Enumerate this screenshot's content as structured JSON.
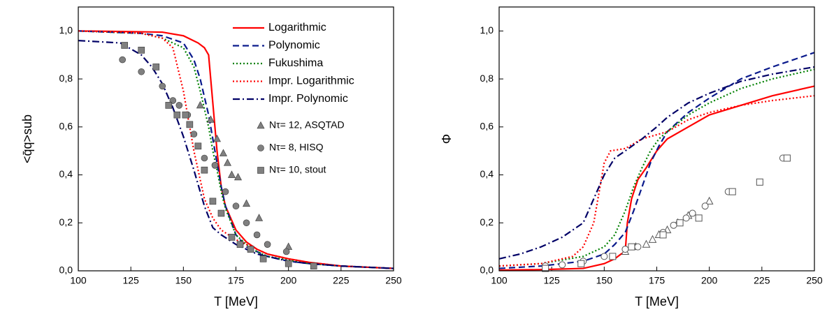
{
  "chart_data": [
    {
      "type": "line",
      "xlabel": "T [MeV]",
      "ylabel": "<q̄q>sub",
      "xlim": [
        100,
        250
      ],
      "xticks": [
        100,
        125,
        150,
        175,
        200,
        225,
        250
      ],
      "ylim": [
        0,
        1.1
      ],
      "yticks": [
        {
          "value": 0,
          "label": "0,0"
        },
        {
          "value": 0.2,
          "label": "0,2"
        },
        {
          "value": 0.4,
          "label": "0,4"
        },
        {
          "value": 0.6,
          "label": "0,6"
        },
        {
          "value": 0.8,
          "label": "0,8"
        },
        {
          "value": 1.0,
          "label": "1,0"
        }
      ],
      "legend": "upper right",
      "series": [
        {
          "name": "Logarithmic",
          "color": "#ff0000",
          "dash": "solid",
          "x": [
            100,
            120,
            140,
            150,
            157,
            160,
            162,
            164,
            166,
            168,
            170,
            175,
            180,
            185,
            190,
            200,
            210,
            225,
            250
          ],
          "values": [
            1.0,
            0.998,
            0.995,
            0.98,
            0.95,
            0.93,
            0.9,
            0.7,
            0.5,
            0.35,
            0.27,
            0.17,
            0.12,
            0.09,
            0.07,
            0.05,
            0.035,
            0.02,
            0.01
          ]
        },
        {
          "name": "Polynomic",
          "color": "#0a1a8c",
          "dash": "dashed",
          "x": [
            100,
            130,
            140,
            150,
            155,
            158,
            162,
            164,
            166,
            168,
            170,
            175,
            180,
            185,
            190,
            200,
            210,
            225,
            250
          ],
          "values": [
            1.0,
            0.99,
            0.98,
            0.95,
            0.88,
            0.8,
            0.65,
            0.55,
            0.45,
            0.35,
            0.27,
            0.15,
            0.1,
            0.08,
            0.06,
            0.04,
            0.03,
            0.02,
            0.01
          ]
        },
        {
          "name": "Fukushima",
          "color": "#008000",
          "dash": "dotted",
          "x": [
            100,
            130,
            140,
            150,
            155,
            158,
            162,
            164,
            166,
            168,
            170,
            175,
            180,
            185,
            190,
            200,
            210,
            225,
            250
          ],
          "values": [
            1.0,
            0.99,
            0.97,
            0.93,
            0.85,
            0.75,
            0.6,
            0.5,
            0.42,
            0.33,
            0.26,
            0.15,
            0.11,
            0.08,
            0.06,
            0.045,
            0.03,
            0.02,
            0.01
          ]
        },
        {
          "name": "Impr. Logarithmic",
          "color": "#ff0000",
          "dash": "dotted",
          "x": [
            100,
            120,
            130,
            135,
            140,
            145,
            150,
            155,
            160,
            164,
            168,
            175,
            180,
            185,
            190,
            200,
            210,
            225,
            250
          ],
          "values": [
            1.0,
            0.995,
            0.99,
            0.98,
            0.97,
            0.93,
            0.75,
            0.5,
            0.3,
            0.22,
            0.17,
            0.13,
            0.11,
            0.09,
            0.07,
            0.05,
            0.035,
            0.02,
            0.01
          ]
        },
        {
          "name": "Impr. Polynomic",
          "color": "#000066",
          "dash": "dashdot",
          "x": [
            100,
            120,
            130,
            135,
            140,
            145,
            150,
            155,
            160,
            164,
            168,
            175,
            180,
            185,
            190,
            200,
            210,
            225,
            250
          ],
          "values": [
            0.96,
            0.95,
            0.9,
            0.85,
            0.78,
            0.68,
            0.56,
            0.42,
            0.27,
            0.18,
            0.15,
            0.11,
            0.09,
            0.07,
            0.06,
            0.04,
            0.03,
            0.02,
            0.01
          ]
        },
        {
          "name": "Nτ= 12, ASQTAD",
          "color": "#808080",
          "marker": "triangle",
          "x": [
            158,
            163,
            166,
            169,
            171,
            173,
            176,
            180,
            186,
            200
          ],
          "values": [
            0.69,
            0.63,
            0.55,
            0.49,
            0.45,
            0.4,
            0.39,
            0.28,
            0.22,
            0.1
          ]
        },
        {
          "name": "Nτ= 8, HISQ",
          "color": "#808080",
          "marker": "circle",
          "x": [
            121,
            130,
            140,
            145,
            148,
            152,
            155,
            160,
            165,
            170,
            175,
            180,
            185,
            190,
            199
          ],
          "values": [
            0.88,
            0.83,
            0.77,
            0.71,
            0.69,
            0.65,
            0.57,
            0.47,
            0.44,
            0.33,
            0.27,
            0.2,
            0.15,
            0.11,
            0.08
          ]
        },
        {
          "name": "Nτ= 10, stout",
          "color": "#808080",
          "marker": "square",
          "x": [
            122,
            130,
            137,
            143,
            147,
            151,
            153,
            157,
            160,
            164,
            168,
            173,
            177,
            182,
            188,
            200,
            212
          ],
          "values": [
            0.94,
            0.92,
            0.85,
            0.69,
            0.65,
            0.65,
            0.61,
            0.52,
            0.42,
            0.29,
            0.24,
            0.14,
            0.11,
            0.09,
            0.05,
            0.03,
            0.02
          ]
        }
      ]
    },
    {
      "type": "line",
      "xlabel": "T [MeV]",
      "ylabel": "Φ",
      "xlim": [
        100,
        250
      ],
      "xticks": [
        100,
        125,
        150,
        175,
        200,
        225,
        250
      ],
      "ylim": [
        0,
        1.1
      ],
      "yticks": [
        {
          "value": 0,
          "label": "0,0"
        },
        {
          "value": 0.2,
          "label": "0,2"
        },
        {
          "value": 0.4,
          "label": "0,4"
        },
        {
          "value": 0.6,
          "label": "0,6"
        },
        {
          "value": 0.8,
          "label": "0,8"
        },
        {
          "value": 1.0,
          "label": "1,0"
        }
      ],
      "series": [
        {
          "color": "#ff0000",
          "dash": "solid",
          "x": [
            100,
            120,
            140,
            150,
            155,
            158,
            160,
            161,
            163,
            166,
            170,
            175,
            180,
            190,
            200,
            215,
            230,
            250
          ],
          "values": [
            0.003,
            0.005,
            0.01,
            0.03,
            0.05,
            0.07,
            0.08,
            0.2,
            0.3,
            0.38,
            0.43,
            0.5,
            0.55,
            0.6,
            0.65,
            0.69,
            0.73,
            0.77
          ]
        },
        {
          "color": "#0a1a8c",
          "dash": "dashed",
          "x": [
            100,
            120,
            140,
            150,
            155,
            160,
            164,
            168,
            172,
            176,
            180,
            190,
            200,
            215,
            230,
            250
          ],
          "values": [
            0.01,
            0.02,
            0.04,
            0.07,
            0.11,
            0.16,
            0.25,
            0.35,
            0.45,
            0.52,
            0.58,
            0.66,
            0.72,
            0.8,
            0.85,
            0.91
          ]
        },
        {
          "color": "#008000",
          "dash": "dotted",
          "x": [
            100,
            120,
            140,
            150,
            155,
            160,
            164,
            168,
            172,
            176,
            180,
            190,
            200,
            215,
            230,
            250
          ],
          "values": [
            0.02,
            0.03,
            0.06,
            0.1,
            0.15,
            0.25,
            0.35,
            0.43,
            0.5,
            0.55,
            0.58,
            0.65,
            0.7,
            0.76,
            0.8,
            0.84
          ]
        },
        {
          "color": "#ff0000",
          "dash": "dotted",
          "x": [
            100,
            120,
            135,
            140,
            145,
            147,
            150,
            153,
            160,
            168,
            180,
            190,
            200,
            215,
            230,
            250
          ],
          "values": [
            0.02,
            0.03,
            0.06,
            0.1,
            0.2,
            0.3,
            0.45,
            0.5,
            0.51,
            0.55,
            0.58,
            0.63,
            0.66,
            0.69,
            0.71,
            0.73
          ]
        },
        {
          "color": "#000066",
          "dash": "dashdot",
          "x": [
            100,
            110,
            120,
            130,
            140,
            145,
            150,
            155,
            160,
            168,
            175,
            180,
            190,
            200,
            215,
            230,
            250
          ],
          "values": [
            0.05,
            0.07,
            0.1,
            0.14,
            0.2,
            0.3,
            0.4,
            0.47,
            0.5,
            0.55,
            0.6,
            0.64,
            0.7,
            0.74,
            0.79,
            0.82,
            0.85
          ]
        },
        {
          "color": "#555555",
          "marker": "triangle",
          "open": true,
          "x": [
            160,
            165,
            170,
            173,
            176,
            180,
            185,
            190,
            200
          ],
          "values": [
            0.08,
            0.1,
            0.11,
            0.13,
            0.15,
            0.17,
            0.2,
            0.23,
            0.29
          ]
        },
        {
          "color": "#555555",
          "marker": "circle",
          "open": true,
          "x": [
            122,
            130,
            140,
            150,
            160,
            166,
            178,
            183,
            189,
            192,
            198,
            209,
            235
          ],
          "values": [
            0.02,
            0.025,
            0.04,
            0.06,
            0.09,
            0.1,
            0.16,
            0.19,
            0.22,
            0.24,
            0.27,
            0.33,
            0.47
          ]
        },
        {
          "color": "#555555",
          "marker": "square",
          "open": true,
          "x": [
            122,
            139,
            154,
            163,
            178,
            186,
            195,
            211,
            224,
            237
          ],
          "values": [
            0.01,
            0.03,
            0.06,
            0.1,
            0.15,
            0.2,
            0.22,
            0.33,
            0.37,
            0.47
          ]
        }
      ]
    }
  ]
}
